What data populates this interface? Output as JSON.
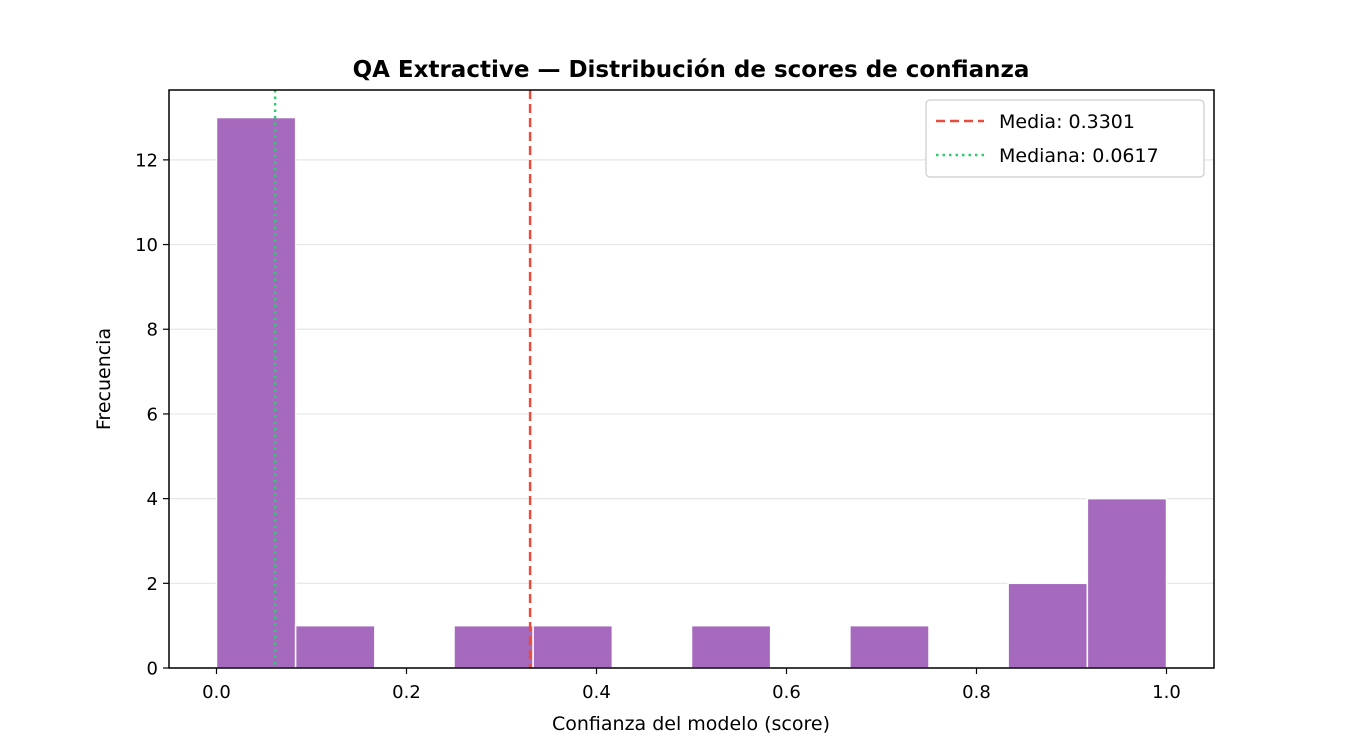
{
  "chart_data": {
    "type": "bar",
    "title": "QA Extractive — Distribución de scores de confianza",
    "xlabel": "Confianza del modelo (score)",
    "ylabel": "Frecuencia",
    "xlim": [
      -0.05,
      1.05
    ],
    "ylim": [
      0,
      13.65
    ],
    "x_ticks": [
      "0.0",
      "0.2",
      "0.4",
      "0.6",
      "0.8",
      "1.0"
    ],
    "y_ticks": [
      "0",
      "2",
      "4",
      "6",
      "8",
      "10",
      "12"
    ],
    "grid": "y",
    "bin_width": 0.0833,
    "bins": [
      {
        "start": 0.0,
        "end": 0.0833,
        "count": 13
      },
      {
        "start": 0.0833,
        "end": 0.1667,
        "count": 1
      },
      {
        "start": 0.1667,
        "end": 0.25,
        "count": 0
      },
      {
        "start": 0.25,
        "end": 0.3333,
        "count": 1
      },
      {
        "start": 0.3333,
        "end": 0.4167,
        "count": 1
      },
      {
        "start": 0.4167,
        "end": 0.5,
        "count": 0
      },
      {
        "start": 0.5,
        "end": 0.5833,
        "count": 1
      },
      {
        "start": 0.5833,
        "end": 0.6667,
        "count": 0
      },
      {
        "start": 0.6667,
        "end": 0.75,
        "count": 1
      },
      {
        "start": 0.75,
        "end": 0.8333,
        "count": 0
      },
      {
        "start": 0.8333,
        "end": 0.9167,
        "count": 2
      },
      {
        "start": 0.9167,
        "end": 1.0,
        "count": 4
      }
    ],
    "bar_color": "#a569bd",
    "reference_lines": [
      {
        "label": "Media: 0.3301",
        "value": 0.3301,
        "style": "dashed",
        "color": "#e74c3c"
      },
      {
        "label": "Mediana: 0.0617",
        "value": 0.0617,
        "style": "dotted",
        "color": "#2ecc71"
      }
    ],
    "legend_position": "top-right"
  }
}
